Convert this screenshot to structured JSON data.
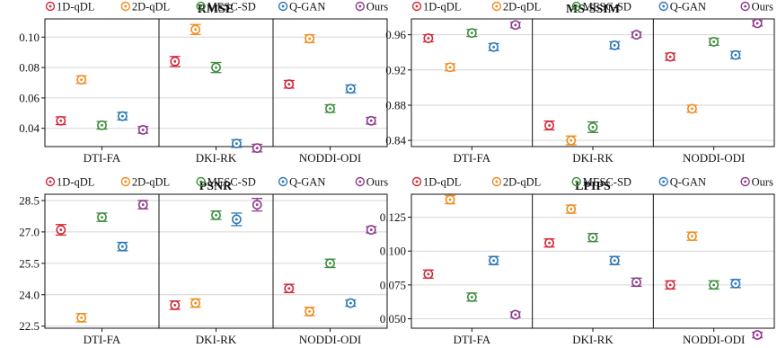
{
  "chart_data": [
    {
      "type": "scatter",
      "title": "RMSE",
      "categories": [
        "DTI-FA",
        "DKI-RK",
        "NODDI-ODI"
      ],
      "yticks": [
        "0.04",
        "0.06",
        "0.08",
        "0.10"
      ],
      "ylim": [
        0.028,
        0.112
      ],
      "grid": true,
      "legend": "top",
      "series": [
        {
          "name": "1D-qDL",
          "values": [
            0.045,
            0.084,
            0.069
          ],
          "err": [
            0.0025,
            0.0033,
            0.0025
          ]
        },
        {
          "name": "2D-qDL",
          "values": [
            0.072,
            0.105,
            0.099
          ],
          "err": [
            0.0025,
            0.0033,
            0.0025
          ]
        },
        {
          "name": "MESC-SD",
          "values": [
            0.042,
            0.08,
            0.053
          ],
          "err": [
            0.0025,
            0.0033,
            0.0025
          ]
        },
        {
          "name": "Q-GAN",
          "values": [
            0.048,
            0.03,
            0.066
          ],
          "err": [
            0.0025,
            0.0025,
            0.0025
          ]
        },
        {
          "name": "Ours",
          "values": [
            0.039,
            0.027,
            0.045
          ],
          "err": [
            0.0022,
            0.0025,
            0.0022
          ]
        }
      ]
    },
    {
      "type": "scatter",
      "title": "MS-SSIM",
      "categories": [
        "DTI-FA",
        "DKI-RK",
        "NODDI-ODI"
      ],
      "yticks": [
        "0.84",
        "0.88",
        "0.92",
        "0.96"
      ],
      "ylim": [
        0.833,
        0.978
      ],
      "grid": true,
      "legend": "top",
      "series": [
        {
          "name": "1D-qDL",
          "values": [
            0.956,
            0.857,
            0.935
          ],
          "err": [
            0.004,
            0.005,
            0.004
          ]
        },
        {
          "name": "2D-qDL",
          "values": [
            0.923,
            0.84,
            0.876
          ],
          "err": [
            0.004,
            0.005,
            0.004
          ]
        },
        {
          "name": "MESC-SD",
          "values": [
            0.962,
            0.855,
            0.952
          ],
          "err": [
            0.004,
            0.006,
            0.004
          ]
        },
        {
          "name": "Q-GAN",
          "values": [
            0.946,
            0.948,
            0.937
          ],
          "err": [
            0.004,
            0.004,
            0.004
          ]
        },
        {
          "name": "Ours",
          "values": [
            0.971,
            0.96,
            0.973
          ],
          "err": [
            0.003,
            0.003,
            0.003
          ]
        }
      ]
    },
    {
      "type": "scatter",
      "title": "PSNR",
      "categories": [
        "DTI-FA",
        "DKI-RK",
        "NODDI-ODI"
      ],
      "yticks": [
        "22.5",
        "24.0",
        "25.5",
        "27.0",
        "28.5"
      ],
      "ylim": [
        22.4,
        28.8
      ],
      "grid": true,
      "legend": "top",
      "series": [
        {
          "name": "1D-qDL",
          "values": [
            27.1,
            23.5,
            24.3
          ],
          "err": [
            0.25,
            0.2,
            0.2
          ]
        },
        {
          "name": "2D-qDL",
          "values": [
            22.9,
            23.6,
            23.2
          ],
          "err": [
            0.2,
            0.2,
            0.2
          ]
        },
        {
          "name": "MESC-SD",
          "values": [
            27.7,
            27.8,
            25.5
          ],
          "err": [
            0.2,
            0.2,
            0.2
          ]
        },
        {
          "name": "Q-GAN",
          "values": [
            26.3,
            27.6,
            23.6
          ],
          "err": [
            0.2,
            0.3,
            0.15
          ]
        },
        {
          "name": "Ours",
          "values": [
            28.3,
            28.3,
            27.1
          ],
          "err": [
            0.2,
            0.3,
            0.15
          ]
        }
      ]
    },
    {
      "type": "scatter",
      "title": "LPIPS",
      "categories": [
        "DTI-FA",
        "DKI-RK",
        "NODDI-ODI"
      ],
      "yticks": [
        "0.050",
        "0.075",
        "0.100",
        "0.125"
      ],
      "ylim": [
        0.043,
        0.142
      ],
      "grid": true,
      "legend": "top",
      "series": [
        {
          "name": "1D-qDL",
          "values": [
            0.083,
            0.106,
            0.075
          ],
          "err": [
            0.003,
            0.003,
            0.003
          ]
        },
        {
          "name": "2D-qDL",
          "values": [
            0.138,
            0.131,
            0.111
          ],
          "err": [
            0.003,
            0.003,
            0.003
          ]
        },
        {
          "name": "MESC-SD",
          "values": [
            0.066,
            0.11,
            0.075
          ],
          "err": [
            0.003,
            0.003,
            0.003
          ]
        },
        {
          "name": "Q-GAN",
          "values": [
            0.093,
            0.093,
            0.076
          ],
          "err": [
            0.003,
            0.003,
            0.003
          ]
        },
        {
          "name": "Ours",
          "values": [
            0.053,
            0.077,
            0.038
          ],
          "err": [
            0.002,
            0.003,
            0.002
          ]
        }
      ]
    }
  ],
  "colors": {
    "1D-qDL": "#d62839",
    "2D-qDL": "#f08c1e",
    "MESC-SD": "#3e8e3e",
    "Q-GAN": "#2a78b8",
    "Ours": "#8e3a8e"
  },
  "marker_icon": "ring-dot-icon"
}
